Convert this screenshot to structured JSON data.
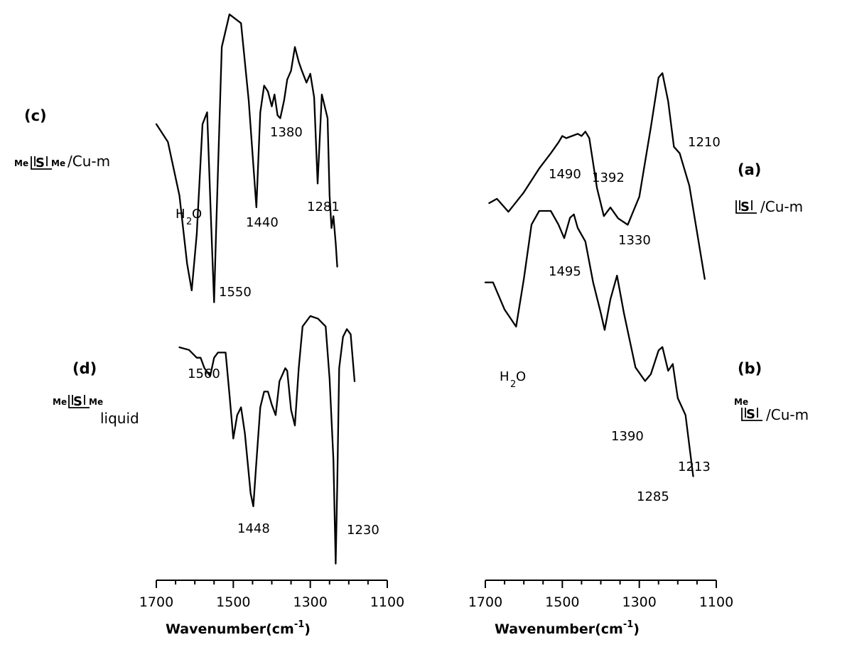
{
  "chart_data": [
    {
      "type": "line",
      "panel": "(a)",
      "species_label": "/Cu-m",
      "ring_letter": "S",
      "xlabel": "Wavenumber(cm",
      "xlabel_sup": "-1",
      "xlabel_close": ")",
      "xlim": [
        1700,
        1100
      ],
      "xticks": [
        "1700",
        "1500",
        "1300",
        "1100"
      ],
      "x": [
        1690,
        1670,
        1640,
        1600,
        1560,
        1530,
        1510,
        1500,
        1490,
        1475,
        1460,
        1450,
        1440,
        1430,
        1410,
        1392,
        1375,
        1355,
        1330,
        1300,
        1270,
        1250,
        1240,
        1225,
        1210,
        1195,
        1170,
        1130
      ],
      "y": [
        0.4,
        0.42,
        0.36,
        0.45,
        0.56,
        0.63,
        0.68,
        0.71,
        0.7,
        0.71,
        0.72,
        0.71,
        0.73,
        0.7,
        0.47,
        0.34,
        0.38,
        0.33,
        0.3,
        0.43,
        0.75,
        0.98,
        1.0,
        0.87,
        0.66,
        0.63,
        0.48,
        0.05
      ],
      "peak_labels": [
        "1490",
        "1392",
        "1330",
        "1210"
      ],
      "peak_x": [
        1490,
        1392,
        1330,
        1210
      ],
      "ylim": [
        0,
        1
      ]
    },
    {
      "type": "line",
      "panel": "(b)",
      "species_label": "/Cu-m",
      "ring_letter": "S",
      "ring_prefix": "Me",
      "water_label": "H",
      "water_sub": "2",
      "water_tail": "O",
      "xlabel": "Wavenumber(cm",
      "xlabel_sup": "-1",
      "xlabel_close": ")",
      "xlim": [
        1700,
        1100
      ],
      "xticks": [
        "1700",
        "1500",
        "1300",
        "1100"
      ],
      "x": [
        1700,
        1680,
        1650,
        1620,
        1600,
        1580,
        1560,
        1530,
        1510,
        1495,
        1480,
        1470,
        1460,
        1440,
        1420,
        1400,
        1390,
        1375,
        1358,
        1340,
        1310,
        1285,
        1270,
        1250,
        1240,
        1225,
        1213,
        1200,
        1180,
        1160
      ],
      "y": [
        0.79,
        0.79,
        0.71,
        0.66,
        0.8,
        0.96,
        1.0,
        1.0,
        0.96,
        0.92,
        0.98,
        0.99,
        0.95,
        0.91,
        0.79,
        0.7,
        0.65,
        0.74,
        0.81,
        0.7,
        0.54,
        0.5,
        0.52,
        0.59,
        0.6,
        0.53,
        0.55,
        0.45,
        0.4,
        0.22
      ],
      "peak_labels": [
        "1495",
        "1390",
        "1285",
        "1213"
      ],
      "peak_x": [
        1495,
        1390,
        1285,
        1213
      ],
      "ylim": [
        0,
        1
      ]
    },
    {
      "type": "line",
      "panel": "(c)",
      "species_label": "/Cu-m",
      "ring_letter": "S",
      "ring_prefix": "Me",
      "ring_suffix": "Me",
      "water_label": "H",
      "water_sub": "2",
      "water_tail": "O",
      "xlabel": "Wavenumber(cm",
      "xlabel_sup": "-1",
      "xlabel_close": ")",
      "xlim": [
        1700,
        1100
      ],
      "xticks": [
        "1700",
        "1500",
        "1300",
        "1100"
      ],
      "x": [
        1700,
        1670,
        1640,
        1620,
        1608,
        1595,
        1580,
        1568,
        1558,
        1550,
        1545,
        1530,
        1510,
        1480,
        1460,
        1440,
        1430,
        1420,
        1410,
        1400,
        1393,
        1385,
        1378,
        1368,
        1360,
        1350,
        1340,
        1330,
        1322,
        1310,
        1300,
        1290,
        1281,
        1270,
        1255,
        1250,
        1245,
        1240,
        1234,
        1230
      ],
      "y": [
        0.62,
        0.56,
        0.38,
        0.15,
        0.06,
        0.25,
        0.62,
        0.66,
        0.3,
        0.02,
        0.25,
        0.88,
        0.99,
        0.96,
        0.7,
        0.34,
        0.66,
        0.75,
        0.73,
        0.68,
        0.72,
        0.65,
        0.64,
        0.7,
        0.77,
        0.8,
        0.88,
        0.83,
        0.8,
        0.76,
        0.79,
        0.71,
        0.42,
        0.72,
        0.64,
        0.38,
        0.27,
        0.31,
        0.22,
        0.14
      ],
      "peak_labels": [
        "1550",
        "1440",
        "1380",
        "1281"
      ],
      "peak_x": [
        1550,
        1440,
        1380,
        1281
      ],
      "ylim": [
        0,
        1
      ]
    },
    {
      "type": "line",
      "panel": "(d)",
      "species_label": "liquid",
      "ring_letter": "S",
      "ring_prefix": "Me",
      "ring_suffix": "Me",
      "xlabel": "Wavenumber(cm",
      "xlabel_sup": "-1",
      "xlabel_close": ")",
      "xlim": [
        1700,
        1100
      ],
      "xticks": [
        "1700",
        "1500",
        "1300",
        "1100"
      ],
      "x": [
        1640,
        1615,
        1595,
        1585,
        1575,
        1560,
        1550,
        1540,
        1520,
        1510,
        1500,
        1490,
        1480,
        1470,
        1455,
        1448,
        1440,
        1430,
        1420,
        1410,
        1400,
        1390,
        1380,
        1365,
        1360,
        1350,
        1340,
        1330,
        1320,
        1300,
        1280,
        1260,
        1250,
        1240,
        1234,
        1230,
        1225,
        1215,
        1205,
        1195,
        1185
      ],
      "y": [
        0.88,
        0.87,
        0.84,
        0.84,
        0.8,
        0.77,
        0.84,
        0.86,
        0.86,
        0.7,
        0.53,
        0.62,
        0.65,
        0.55,
        0.32,
        0.27,
        0.44,
        0.65,
        0.71,
        0.71,
        0.66,
        0.62,
        0.75,
        0.8,
        0.79,
        0.64,
        0.58,
        0.8,
        0.96,
        1.0,
        0.99,
        0.96,
        0.76,
        0.45,
        0.05,
        0.35,
        0.8,
        0.92,
        0.95,
        0.93,
        0.75
      ],
      "peak_labels": [
        "1560",
        "1448",
        "1230"
      ],
      "peak_x": [
        1560,
        1448,
        1230
      ],
      "ylim": [
        0,
        1
      ]
    }
  ]
}
